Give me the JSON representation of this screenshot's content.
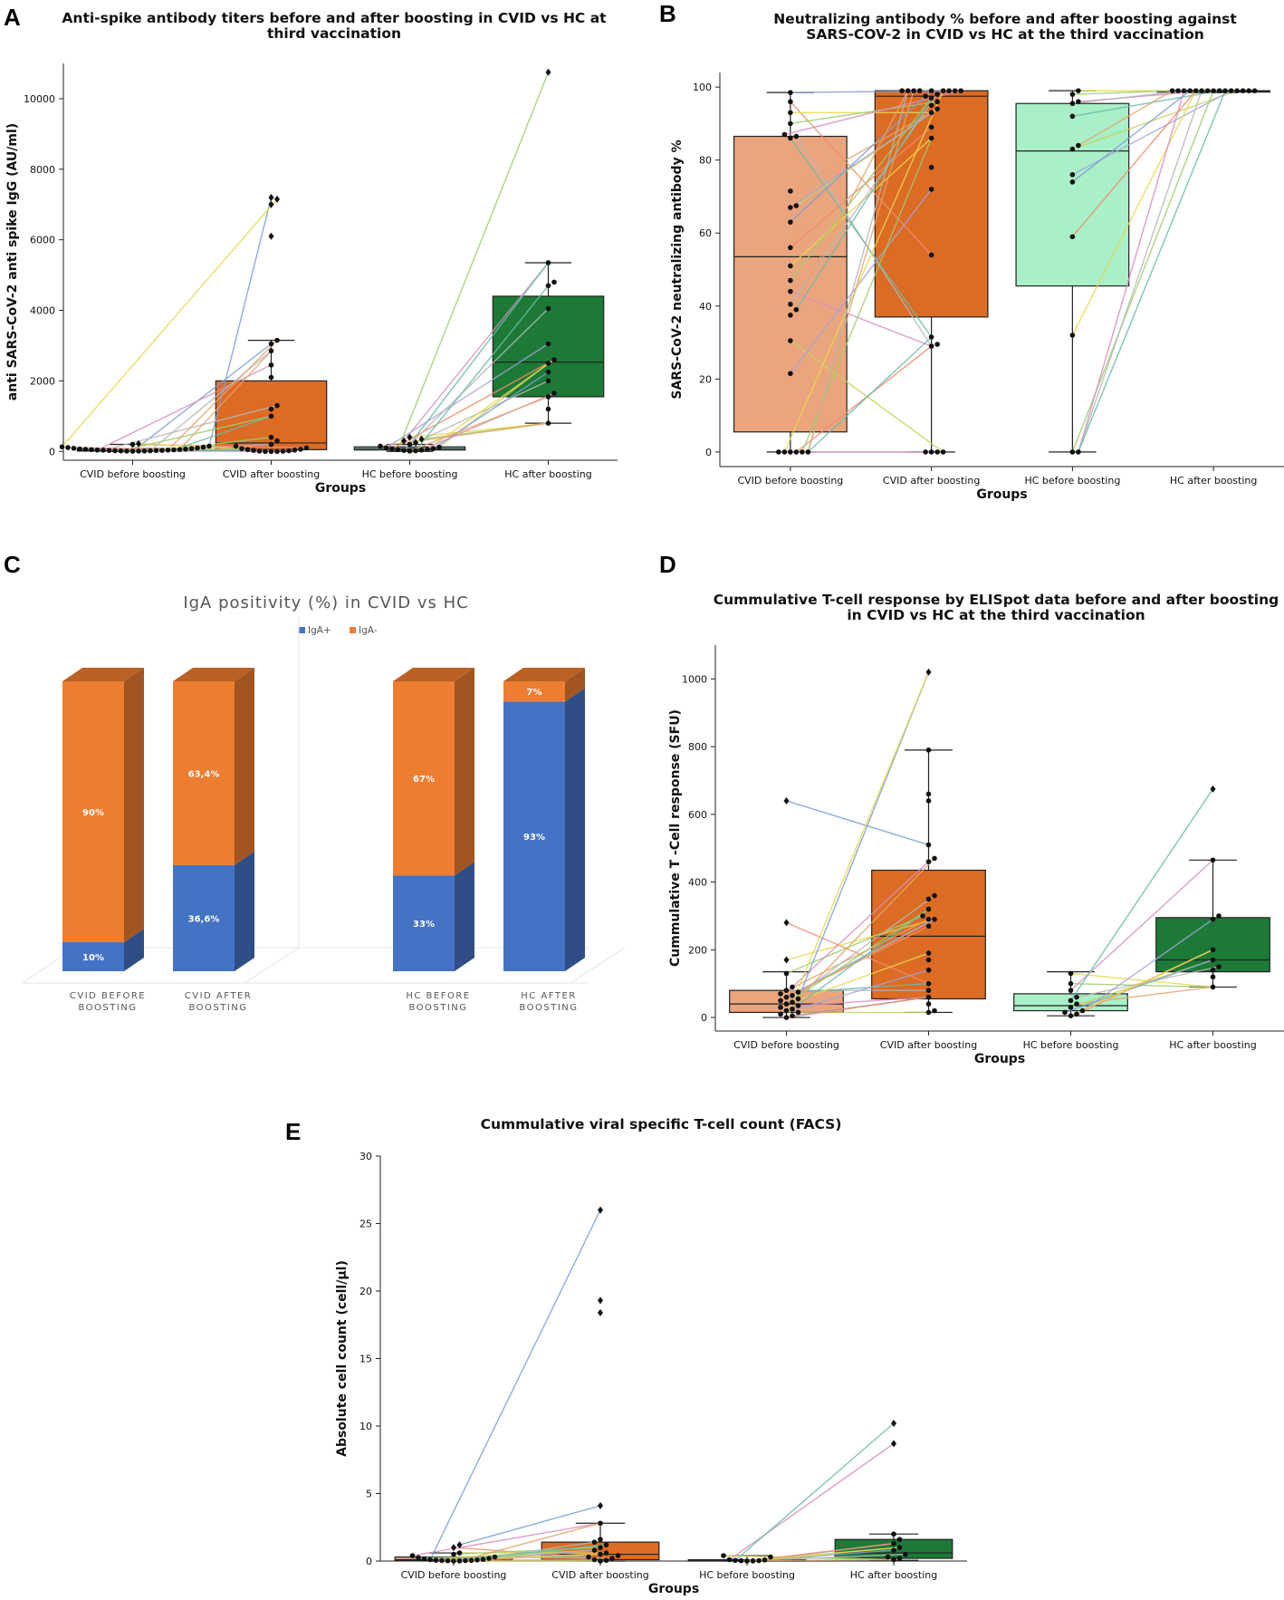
{
  "chart_data": [
    {
      "id": "A",
      "panel_label": "A",
      "type": "box-swarm",
      "title": "Anti-spike antibody titers before and after boosting in CVID vs HC at third vaccination",
      "title_lines": [
        "Anti-spike antibody titers before and after boosting in CVID vs HC at",
        "third vaccination"
      ],
      "xlabel": "Groups",
      "ylabel": "anti SARS-CoV-2 anti spike IgG (AU/ml)",
      "ylim": [
        -250,
        11000
      ],
      "yticks": [
        0,
        2000,
        4000,
        6000,
        8000,
        10000
      ],
      "categories": [
        "CVID before boosting",
        "CVID after boosting",
        "HC before boosting",
        "HC after boosting"
      ],
      "colors": [
        "#eba57e",
        "#dc6b24",
        "#a9efc7",
        "#1c7a36"
      ],
      "boxes": [
        {
          "q1": 10,
          "median": 40,
          "q3": 80,
          "whislo": 0,
          "whishi": 200
        },
        {
          "q1": 50,
          "median": 240,
          "q3": 2000,
          "whislo": 0,
          "whishi": 3150
        },
        {
          "q1": 40,
          "median": 80,
          "q3": 130,
          "whislo": 0,
          "whishi": 200
        },
        {
          "q1": 1550,
          "median": 2530,
          "q3": 4400,
          "whislo": 800,
          "whishi": 5350
        }
      ],
      "points": [
        [
          5,
          10,
          20,
          30,
          40,
          50,
          60,
          80,
          100,
          120,
          150,
          200,
          220,
          15,
          25,
          35,
          45,
          55,
          65,
          70,
          90,
          110,
          130,
          8,
          12,
          18,
          28,
          38
        ],
        [
          7200,
          7150,
          7000,
          6100,
          3150,
          3050,
          2850,
          2450,
          2100,
          1300,
          1200,
          1000,
          400,
          300,
          200,
          150,
          100,
          80,
          60,
          50,
          40,
          30,
          20,
          10,
          5,
          0,
          0,
          0
        ],
        [
          400,
          350,
          300,
          250,
          200,
          150,
          120,
          100,
          80,
          70,
          60,
          50,
          40,
          30,
          20,
          10
        ],
        [
          10750,
          5350,
          4800,
          4700,
          4050,
          3050,
          2600,
          2500,
          2250,
          2000,
          1650,
          1550,
          1200,
          800
        ]
      ]
    },
    {
      "id": "B",
      "panel_label": "B",
      "type": "box-swarm",
      "title": "Neutralizing antibody % before and after boosting against SARS-COV-2 in CVID vs HC at the third vaccination",
      "title_lines": [
        "Neutralizing antibody % before and after boosting against",
        "SARS-COV-2 in CVID vs HC at the third vaccination"
      ],
      "xlabel": "Groups",
      "ylabel": "SARS-CoV-2 neutralizing antibody %",
      "ylim": [
        -4,
        104
      ],
      "yticks": [
        0,
        20,
        40,
        60,
        80,
        100
      ],
      "categories": [
        "CVID before boosting",
        "CVID after boosting",
        "HC before boosting",
        "HC after boosting"
      ],
      "colors": [
        "#eba57e",
        "#dc6b24",
        "#a9efc7",
        "#1c7a36"
      ],
      "boxes": [
        {
          "q1": 5.5,
          "median": 53.5,
          "q3": 86.5,
          "whislo": 0,
          "whishi": 98.5
        },
        {
          "q1": 37,
          "median": 97.5,
          "q3": 99,
          "whislo": 0,
          "whishi": 99
        },
        {
          "q1": 45.5,
          "median": 82.5,
          "q3": 95.5,
          "whislo": 0,
          "whishi": 99
        },
        {
          "q1": 98.8,
          "median": 99,
          "q3": 99,
          "whislo": 98.5,
          "whishi": 99
        }
      ],
      "points": [
        [
          98.5,
          96,
          93,
          90,
          87,
          86.5,
          86,
          71.5,
          67.5,
          67,
          63,
          56,
          51,
          47,
          44,
          40.5,
          39,
          37.5,
          30.5,
          21.5,
          0,
          0,
          0,
          0,
          0,
          0
        ],
        [
          99,
          99,
          99,
          99,
          99,
          99,
          99,
          99,
          99,
          98,
          97.5,
          97,
          96,
          95,
          94,
          93,
          89,
          86,
          78,
          72,
          54,
          31.5,
          29.5,
          29,
          0,
          0,
          0,
          0
        ],
        [
          99,
          98,
          96,
          95.5,
          92,
          84,
          83,
          76,
          74,
          59,
          32,
          0,
          0
        ],
        [
          99,
          99,
          99,
          99,
          99,
          99,
          99,
          99,
          99,
          99,
          99,
          99,
          99,
          99,
          99
        ]
      ]
    },
    {
      "id": "C",
      "panel_label": "C",
      "type": "bar",
      "stacked": true,
      "title": "IgA positivity (%) in CVID vs HC",
      "categories": [
        "CVID BEFORE BOOSTING",
        "CVID AFTER BOOSTING",
        "HC BEFORE BOOSTING",
        "HC AFTER BOOSTING"
      ],
      "category_lines": [
        [
          "CVID BEFORE",
          "BOOSTING"
        ],
        [
          "CVID AFTER",
          "BOOSTING"
        ],
        [
          "HC BEFORE",
          "BOOSTING"
        ],
        [
          "HC AFTER",
          "BOOSTING"
        ]
      ],
      "series": [
        {
          "name": "IgA+",
          "color": "#4472c4",
          "values": [
            10,
            36.6,
            33,
            93
          ],
          "labels": [
            "10%",
            "36,6%",
            "33%",
            "93%"
          ]
        },
        {
          "name": "IgA-",
          "color": "#ed7d31",
          "values": [
            90,
            63.4,
            67,
            7
          ],
          "labels": [
            "90%",
            "63,4%",
            "67%",
            "7%"
          ]
        }
      ],
      "legend": "top"
    },
    {
      "id": "D",
      "panel_label": "D",
      "type": "box-swarm",
      "title": "Cummulative T-cell response by ELISpot data before and after boosting in CVID vs HC at the third vaccination",
      "title_lines": [
        "Cummulative T-cell response by ELISpot data before and after boosting",
        "in CVID vs HC at the third vaccination"
      ],
      "xlabel": "Groups",
      "ylabel": "Cummulative T -Cell response (SFU)",
      "ylim": [
        -40,
        1100
      ],
      "yticks": [
        0,
        200,
        400,
        600,
        800,
        1000
      ],
      "categories": [
        "CVID before boosting",
        "CVID after boosting",
        "HC before boosting",
        "HC after boosting"
      ],
      "colors": [
        "#eba57e",
        "#dc6b24",
        "#a9efc7",
        "#1c7a36"
      ],
      "boxes": [
        {
          "q1": 15,
          "median": 40,
          "q3": 80,
          "whislo": 0,
          "whishi": 135
        },
        {
          "q1": 55,
          "median": 240,
          "q3": 435,
          "whislo": 15,
          "whishi": 790
        },
        {
          "q1": 20,
          "median": 35,
          "q3": 70,
          "whislo": 5,
          "whishi": 135
        },
        {
          "q1": 135,
          "median": 170,
          "q3": 295,
          "whislo": 90,
          "whishi": 465
        }
      ],
      "points": [
        [
          640,
          280,
          170,
          130,
          90,
          80,
          75,
          70,
          65,
          60,
          55,
          50,
          45,
          40,
          35,
          30,
          25,
          20,
          15,
          10,
          5,
          0
        ],
        [
          1020,
          790,
          660,
          640,
          510,
          470,
          460,
          360,
          350,
          320,
          300,
          290,
          290,
          270,
          190,
          170,
          140,
          100,
          80,
          60,
          40,
          20,
          15
        ],
        [
          130,
          100,
          80,
          60,
          50,
          40,
          30,
          20,
          15,
          10,
          5
        ],
        [
          675,
          465,
          300,
          290,
          200,
          170,
          150,
          140,
          120,
          90
        ]
      ]
    },
    {
      "id": "E",
      "panel_label": "E",
      "type": "box-swarm",
      "title": "Cummulative viral specific T-cell count (FACS)",
      "title_lines": [
        "Cummulative viral specific T-cell count (FACS)"
      ],
      "xlabel": "Groups",
      "ylabel": "Absolute cell count (cell/µl)",
      "ylim": [
        0,
        30
      ],
      "yticks": [
        0,
        5,
        10,
        15,
        20,
        25,
        30
      ],
      "categories": [
        "CVID before boosting",
        "CVID after boosting",
        "HC before boosting",
        "HC after boosting"
      ],
      "colors": [
        "#eba57e",
        "#dc6b24",
        "#a9efc7",
        "#1c7a36"
      ],
      "boxes": [
        {
          "q1": 0.05,
          "median": 0.1,
          "q3": 0.3,
          "whislo": 0,
          "whishi": 0.6
        },
        {
          "q1": 0.1,
          "median": 0.5,
          "q3": 1.4,
          "whislo": 0,
          "whishi": 2.8
        },
        {
          "q1": 0.02,
          "median": 0.05,
          "q3": 0.1,
          "whislo": 0,
          "whishi": 0.4
        },
        {
          "q1": 0.2,
          "median": 0.6,
          "q3": 1.6,
          "whislo": 0.05,
          "whishi": 2.0
        }
      ],
      "points": [
        [
          1.2,
          1.0,
          0.6,
          0.5,
          0.4,
          0.3,
          0.25,
          0.2,
          0.15,
          0.12,
          0.1,
          0.08,
          0.06,
          0.05,
          0.04,
          0.03,
          0.02,
          0.01,
          0
        ],
        [
          26,
          19.3,
          18.4,
          4.1,
          2.8,
          1.6,
          1.4,
          1.2,
          1.0,
          0.8,
          0.6,
          0.5,
          0.4,
          0.3,
          0.2,
          0.1,
          0.05,
          0
        ],
        [
          0.4,
          0.3,
          0.1,
          0.08,
          0.05,
          0.03,
          0.02,
          0.01,
          0
        ],
        [
          10.2,
          8.7,
          2.0,
          1.6,
          1.3,
          1.0,
          0.8,
          0.5,
          0.3,
          0.2,
          0.1
        ]
      ]
    }
  ]
}
